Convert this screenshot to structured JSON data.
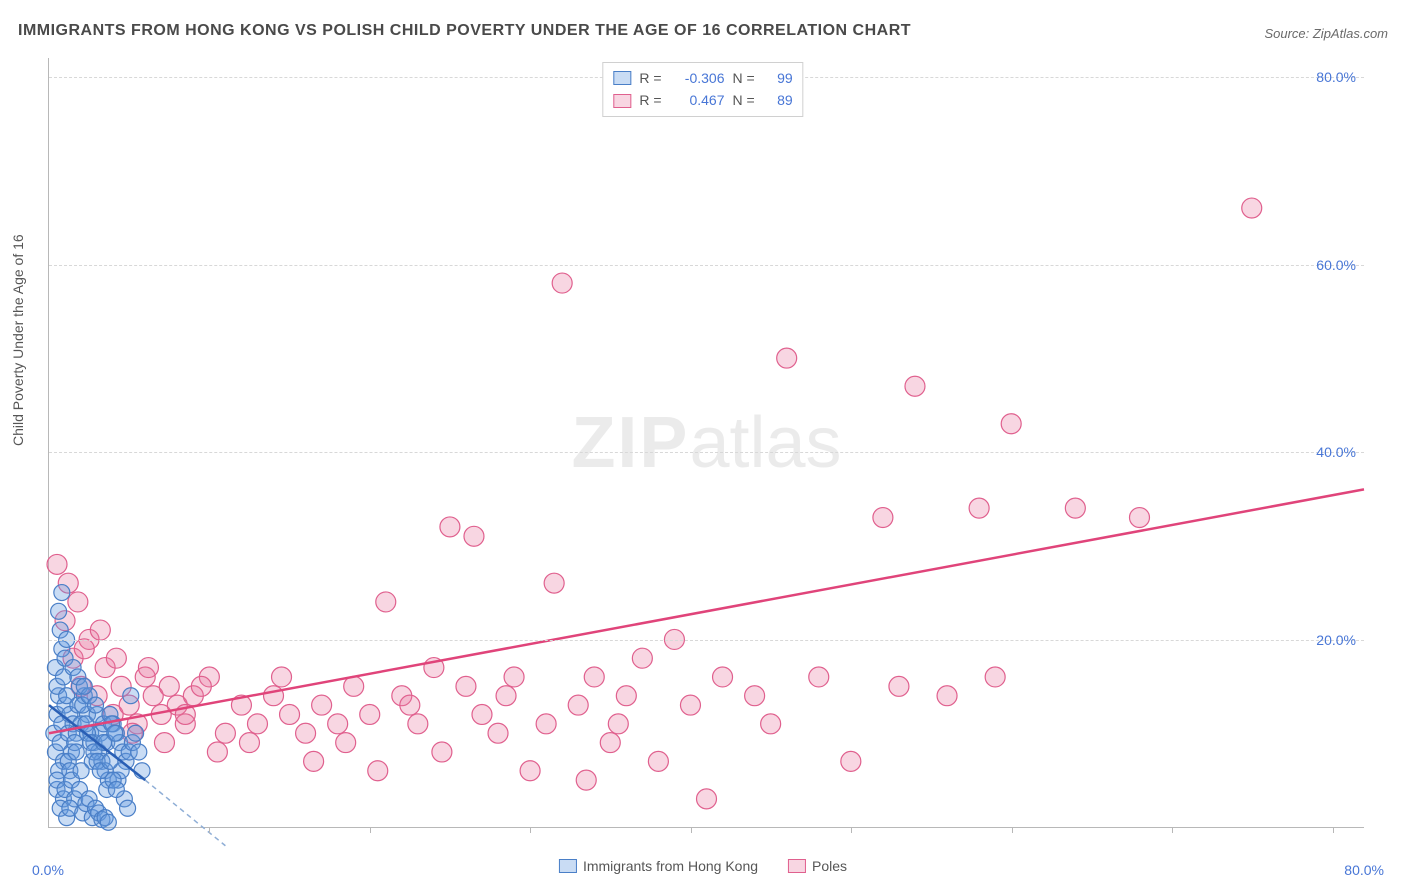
{
  "title": "IMMIGRANTS FROM HONG KONG VS POLISH CHILD POVERTY UNDER THE AGE OF 16 CORRELATION CHART",
  "source": "Source: ZipAtlas.com",
  "ylabel": "Child Poverty Under the Age of 16",
  "watermark_a": "ZIP",
  "watermark_b": "atlas",
  "axis": {
    "xlim": [
      0,
      82
    ],
    "ylim": [
      0,
      82
    ],
    "y_ticks": [
      20,
      40,
      60,
      80
    ],
    "y_tick_labels": [
      "20.0%",
      "40.0%",
      "60.0%",
      "80.0%"
    ],
    "x_minmax_labels": [
      "0.0%",
      "80.0%"
    ],
    "axis_color": "#b8b8b8",
    "grid_color": "#d8d8d8",
    "num_color": "#4876d6",
    "text_color": "#565656",
    "xtick_positions": [
      10,
      20,
      30,
      40,
      50,
      60,
      70,
      80
    ]
  },
  "series": {
    "blue": {
      "label": "Immigrants from Hong Kong",
      "fill": "rgba(99,155,224,0.35)",
      "stroke": "#4a7fc7",
      "marker_r": 8,
      "r_value": "-0.306",
      "n_value": "99",
      "trend": {
        "x1": 0,
        "y1": 13,
        "x2": 6,
        "y2": 5,
        "color": "#2a5fb5",
        "width": 2.5
      },
      "trend_ext": {
        "x1": 6,
        "y1": 5,
        "x2": 11,
        "y2": -2,
        "color": "#8faed6",
        "dash": "5,4"
      },
      "points": [
        [
          0.3,
          10
        ],
        [
          0.5,
          12
        ],
        [
          0.4,
          8
        ],
        [
          0.6,
          14
        ],
        [
          0.8,
          11
        ],
        [
          0.5,
          15
        ],
        [
          0.7,
          9
        ],
        [
          1.0,
          13
        ],
        [
          0.9,
          7
        ],
        [
          0.4,
          17
        ],
        [
          1.2,
          10
        ],
        [
          0.6,
          6
        ],
        [
          1.1,
          14
        ],
        [
          0.8,
          19
        ],
        [
          1.3,
          12
        ],
        [
          0.5,
          4
        ],
        [
          1.5,
          11
        ],
        [
          0.9,
          16
        ],
        [
          1.7,
          10
        ],
        [
          0.7,
          21
        ],
        [
          1.4,
          8
        ],
        [
          1.0,
          18
        ],
        [
          1.8,
          13
        ],
        [
          0.6,
          23
        ],
        [
          2.0,
          11
        ],
        [
          1.2,
          7
        ],
        [
          2.2,
          14
        ],
        [
          0.8,
          25
        ],
        [
          1.6,
          9
        ],
        [
          1.1,
          20
        ],
        [
          2.4,
          12
        ],
        [
          0.5,
          5
        ],
        [
          1.9,
          15
        ],
        [
          1.3,
          6
        ],
        [
          2.6,
          10
        ],
        [
          0.9,
          3
        ],
        [
          2.1,
          13
        ],
        [
          1.5,
          17
        ],
        [
          2.8,
          9
        ],
        [
          1.0,
          4
        ],
        [
          2.3,
          11
        ],
        [
          1.7,
          8
        ],
        [
          3.0,
          12
        ],
        [
          0.7,
          2
        ],
        [
          2.5,
          14
        ],
        [
          1.4,
          5
        ],
        [
          3.2,
          10
        ],
        [
          1.8,
          16
        ],
        [
          2.7,
          7
        ],
        [
          1.1,
          1
        ],
        [
          3.4,
          11
        ],
        [
          2.0,
          6
        ],
        [
          2.9,
          13
        ],
        [
          1.6,
          3
        ],
        [
          3.6,
          9
        ],
        [
          2.2,
          15
        ],
        [
          3.1,
          8
        ],
        [
          1.3,
          2
        ],
        [
          3.8,
          12
        ],
        [
          2.4,
          10
        ],
        [
          3.3,
          7
        ],
        [
          1.9,
          4
        ],
        [
          4.0,
          11
        ],
        [
          2.6,
          9
        ],
        [
          3.5,
          6
        ],
        [
          2.1,
          1.5
        ],
        [
          4.2,
          10
        ],
        [
          2.8,
          8
        ],
        [
          3.7,
          5
        ],
        [
          2.3,
          2.5
        ],
        [
          4.4,
          9
        ],
        [
          3.0,
          7
        ],
        [
          3.9,
          11
        ],
        [
          2.5,
          3
        ],
        [
          4.6,
          8
        ],
        [
          3.2,
          6
        ],
        [
          4.1,
          10
        ],
        [
          2.7,
          1
        ],
        [
          4.8,
          7
        ],
        [
          3.4,
          9
        ],
        [
          4.3,
          5
        ],
        [
          2.9,
          2
        ],
        [
          5.0,
          8
        ],
        [
          3.6,
          4
        ],
        [
          4.5,
          6
        ],
        [
          3.1,
          1.5
        ],
        [
          5.2,
          9
        ],
        [
          3.8,
          7
        ],
        [
          4.7,
          3
        ],
        [
          3.3,
          0.8
        ],
        [
          5.4,
          10
        ],
        [
          4.0,
          5
        ],
        [
          4.9,
          2
        ],
        [
          3.5,
          1
        ],
        [
          5.6,
          8
        ],
        [
          4.2,
          4
        ],
        [
          5.1,
          14
        ],
        [
          3.7,
          0.5
        ],
        [
          5.8,
          6
        ]
      ]
    },
    "pink": {
      "label": "Poles",
      "fill": "rgba(232,120,160,0.3)",
      "stroke": "#e0608e",
      "marker_r": 10,
      "r_value": "0.467",
      "n_value": "89",
      "trend": {
        "x1": 0,
        "y1": 10,
        "x2": 82,
        "y2": 36,
        "color": "#e0447a",
        "width": 2.5
      },
      "points": [
        [
          0.5,
          28
        ],
        [
          1,
          22
        ],
        [
          1.5,
          18
        ],
        [
          2,
          15
        ],
        [
          1.2,
          26
        ],
        [
          2.5,
          20
        ],
        [
          3,
          14
        ],
        [
          1.8,
          24
        ],
        [
          3.5,
          17
        ],
        [
          4,
          12
        ],
        [
          2.2,
          19
        ],
        [
          4.5,
          15
        ],
        [
          5,
          13
        ],
        [
          3.2,
          21
        ],
        [
          5.5,
          11
        ],
        [
          6,
          16
        ],
        [
          4.2,
          18
        ],
        [
          6.5,
          14
        ],
        [
          7,
          12
        ],
        [
          5.2,
          10
        ],
        [
          7.5,
          15
        ],
        [
          8,
          13
        ],
        [
          6.2,
          17
        ],
        [
          8.5,
          11
        ],
        [
          9,
          14
        ],
        [
          7.2,
          9
        ],
        [
          10,
          16
        ],
        [
          8.5,
          12
        ],
        [
          11,
          10
        ],
        [
          9.5,
          15
        ],
        [
          12,
          13
        ],
        [
          10.5,
          8
        ],
        [
          13,
          11
        ],
        [
          14,
          14
        ],
        [
          12.5,
          9
        ],
        [
          15,
          12
        ],
        [
          16,
          10
        ],
        [
          14.5,
          16
        ],
        [
          17,
          13
        ],
        [
          18,
          11
        ],
        [
          16.5,
          7
        ],
        [
          19,
          15
        ],
        [
          20,
          12
        ],
        [
          18.5,
          9
        ],
        [
          21,
          24
        ],
        [
          22,
          14
        ],
        [
          20.5,
          6
        ],
        [
          23,
          11
        ],
        [
          24,
          17
        ],
        [
          22.5,
          13
        ],
        [
          25,
          32
        ],
        [
          26,
          15
        ],
        [
          24.5,
          8
        ],
        [
          27,
          12
        ],
        [
          28,
          10
        ],
        [
          26.5,
          31
        ],
        [
          29,
          16
        ],
        [
          30,
          6
        ],
        [
          28.5,
          14
        ],
        [
          31,
          11
        ],
        [
          32,
          58
        ],
        [
          33,
          13
        ],
        [
          31.5,
          26
        ],
        [
          34,
          16
        ],
        [
          35,
          9
        ],
        [
          33.5,
          5
        ],
        [
          36,
          14
        ],
        [
          37,
          18
        ],
        [
          35.5,
          11
        ],
        [
          38,
          7
        ],
        [
          40,
          13
        ],
        [
          39,
          20
        ],
        [
          42,
          16
        ],
        [
          41,
          3
        ],
        [
          44,
          14
        ],
        [
          46,
          50
        ],
        [
          45,
          11
        ],
        [
          48,
          16
        ],
        [
          50,
          7
        ],
        [
          52,
          33
        ],
        [
          54,
          47
        ],
        [
          53,
          15
        ],
        [
          56,
          14
        ],
        [
          58,
          34
        ],
        [
          60,
          43
        ],
        [
          59,
          16
        ],
        [
          64,
          34
        ],
        [
          68,
          33
        ],
        [
          75,
          66
        ]
      ]
    }
  },
  "legend_top_labels": {
    "r_lbl": "R =",
    "n_lbl": "N ="
  }
}
